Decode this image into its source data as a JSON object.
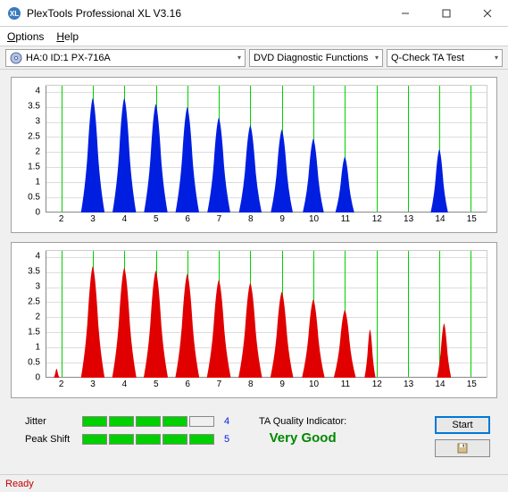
{
  "window": {
    "title": "PlexTools Professional XL V3.16"
  },
  "menu": {
    "options": "Options",
    "help": "Help"
  },
  "toolbar": {
    "drive": "HA:0 ID:1  PX-716A",
    "function": "DVD Diagnostic Functions",
    "test": "Q-Check TA Test"
  },
  "chart": {
    "ylabels": [
      0,
      0.5,
      1,
      1.5,
      2,
      2.5,
      3,
      3.5,
      4
    ],
    "xlabels": [
      2,
      3,
      4,
      5,
      6,
      7,
      8,
      9,
      10,
      11,
      12,
      13,
      14,
      15
    ],
    "ylim": [
      0,
      4.2
    ],
    "xlim": [
      1.5,
      15.5
    ],
    "grid_color": "#00d000",
    "top_color": "#001ee0",
    "bot_color": "#e00000",
    "peaks_top": [
      {
        "x": 3,
        "h": 3.8,
        "w": 0.75
      },
      {
        "x": 4,
        "h": 3.8,
        "w": 0.75
      },
      {
        "x": 5,
        "h": 3.6,
        "w": 0.75
      },
      {
        "x": 6,
        "h": 3.5,
        "w": 0.75
      },
      {
        "x": 7,
        "h": 3.15,
        "w": 0.73
      },
      {
        "x": 8,
        "h": 2.9,
        "w": 0.72
      },
      {
        "x": 9,
        "h": 2.75,
        "w": 0.7
      },
      {
        "x": 10,
        "h": 2.45,
        "w": 0.67
      },
      {
        "x": 11,
        "h": 1.85,
        "w": 0.6
      },
      {
        "x": 14,
        "h": 2.1,
        "w": 0.55
      }
    ],
    "peaks_bot": [
      {
        "x": 3,
        "h": 3.7,
        "w": 0.75
      },
      {
        "x": 4,
        "h": 3.65,
        "w": 0.77
      },
      {
        "x": 5,
        "h": 3.55,
        "w": 0.77
      },
      {
        "x": 6,
        "h": 3.45,
        "w": 0.76
      },
      {
        "x": 7,
        "h": 3.25,
        "w": 0.76
      },
      {
        "x": 8,
        "h": 3.15,
        "w": 0.75
      },
      {
        "x": 9,
        "h": 2.85,
        "w": 0.73
      },
      {
        "x": 10,
        "h": 2.6,
        "w": 0.72
      },
      {
        "x": 11,
        "h": 2.25,
        "w": 0.7
      },
      {
        "x": 11.8,
        "h": 1.6,
        "w": 0.35
      },
      {
        "x": 14.15,
        "h": 1.8,
        "w": 0.45
      }
    ],
    "edge_bot": [
      {
        "x": 1.85,
        "h": 0.3,
        "w": 0.18
      }
    ]
  },
  "metrics": {
    "jitter": {
      "label": "Jitter",
      "filled": 4,
      "total": 5,
      "value": "4",
      "color": "#0020e0"
    },
    "peakshift": {
      "label": "Peak Shift",
      "filled": 5,
      "total": 5,
      "value": "5",
      "color": "#0020e0"
    }
  },
  "quality": {
    "label": "TA Quality Indicator:",
    "value": "Very Good",
    "color": "#008800"
  },
  "buttons": {
    "start": "Start"
  },
  "status": {
    "text": "Ready",
    "color": "#c00000"
  }
}
